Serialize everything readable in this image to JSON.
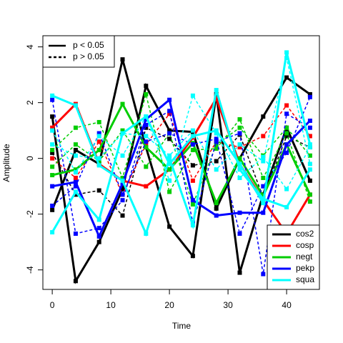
{
  "chart_data": {
    "type": "line",
    "xlabel": "Time",
    "ylabel": "Amplitude",
    "x": [
      0,
      4,
      8,
      12,
      16,
      20,
      24,
      28,
      32,
      36,
      40,
      44
    ],
    "xlim": [
      -1.6,
      45.6
    ],
    "ylim": [
      -4.7,
      4.4
    ],
    "xticks": [
      0,
      10,
      20,
      30,
      40
    ],
    "yticks": [
      -4,
      -2,
      0,
      2,
      4
    ],
    "legend": "bottom-right",
    "line_legend": "top-left",
    "line_types": [
      {
        "label": "p < 0.05",
        "dash": "solid"
      },
      {
        "label": "p > 0.05",
        "dash": "dashed"
      }
    ],
    "series": [
      {
        "name": "cos2",
        "color": "#000000",
        "lines": [
          {
            "dash": "solid",
            "values": [
              -1.85,
              0.3,
              -0.2,
              3.55,
              0.4,
              -2.45,
              -3.5,
              2.3,
              -4.1,
              -1.3,
              1.1,
              -0.8
            ]
          },
          {
            "dash": "solid",
            "values": [
              1.5,
              -4.4,
              -3.0,
              -1.1,
              2.6,
              1.0,
              0.95,
              -1.8,
              0.0,
              1.5,
              2.9,
              2.3
            ]
          },
          {
            "dash": "dashed",
            "values": [
              0.2,
              -1.3,
              -1.15,
              -2.05,
              1.1,
              0.7,
              -0.25,
              -0.1,
              0.85,
              -1.4,
              0.8,
              0.4
            ]
          }
        ]
      },
      {
        "name": "cosp",
        "color": "#ff0000",
        "lines": [
          {
            "dash": "solid",
            "values": [
              1.1,
              1.95,
              -0.2,
              -0.8,
              -1.0,
              -0.4,
              0.75,
              2.15,
              -0.2,
              -1.5,
              -2.7,
              -1.3
            ]
          },
          {
            "dash": "dashed",
            "values": [
              0.0,
              -0.7,
              0.6,
              -1.3,
              0.5,
              1.6,
              -0.8,
              0.6,
              0.4,
              0.8,
              1.9,
              0.8
            ]
          }
        ]
      },
      {
        "name": "negt",
        "color": "#00cd00",
        "lines": [
          {
            "dash": "solid",
            "values": [
              -0.6,
              -0.4,
              0.3,
              1.95,
              0.4,
              -0.4,
              0.55,
              -1.6,
              0.0,
              -1.35,
              0.5,
              -1.3
            ]
          },
          {
            "dash": "dashed",
            "values": [
              0.3,
              1.1,
              1.3,
              -0.7,
              2.3,
              -1.2,
              0.3,
              0.35,
              1.4,
              -0.7,
              0.9,
              -1.55
            ]
          },
          {
            "dash": "dashed",
            "values": [
              -0.3,
              0.5,
              -0.1,
              1.0,
              -0.3,
              0.9,
              -1.65,
              0.5,
              1.1,
              0.1,
              1.1,
              0.1
            ]
          }
        ]
      },
      {
        "name": "pekp",
        "color": "#0000ff",
        "lines": [
          {
            "dash": "solid",
            "values": [
              -1.0,
              -0.85,
              -2.8,
              -0.9,
              1.4,
              2.1,
              -1.5,
              -2.05,
              -1.95,
              -1.95,
              0.5,
              1.35
            ]
          },
          {
            "dash": "dashed",
            "values": [
              2.1,
              -2.7,
              -2.5,
              -1.5,
              1.2,
              1.7,
              -2.3,
              0.6,
              0.9,
              -4.15,
              1.6,
              1.1
            ]
          },
          {
            "dash": "dashed",
            "values": [
              -1.7,
              -1.0,
              0.9,
              -1.3,
              0.6,
              0.9,
              0.5,
              0.7,
              -2.7,
              -1.0,
              0.2,
              2.2
            ]
          }
        ]
      },
      {
        "name": "squa",
        "color": "#00ffff",
        "lines": [
          {
            "dash": "solid",
            "values": [
              2.25,
              1.9,
              -0.25,
              -0.8,
              -2.7,
              0.0,
              -2.4,
              2.45,
              -0.4,
              -1.45,
              -1.75,
              -0.4
            ]
          },
          {
            "dash": "solid",
            "values": [
              -2.65,
              -1.2,
              -2.2,
              0.9,
              1.5,
              -0.2,
              0.8,
              1.0,
              -0.2,
              -1.6,
              3.8,
              0.5
            ]
          },
          {
            "dash": "dashed",
            "values": [
              1.0,
              -0.5,
              0.8,
              0.1,
              1.5,
              -0.8,
              2.25,
              0.9,
              -0.7,
              0.05,
              -1.1,
              0.4
            ]
          },
          {
            "dash": "dashed",
            "values": [
              0.5,
              0.1,
              0.0,
              0.9,
              0.8,
              0.1,
              1.0,
              -0.4,
              0.5,
              -0.1,
              3.6,
              -0.2
            ]
          }
        ]
      }
    ]
  }
}
